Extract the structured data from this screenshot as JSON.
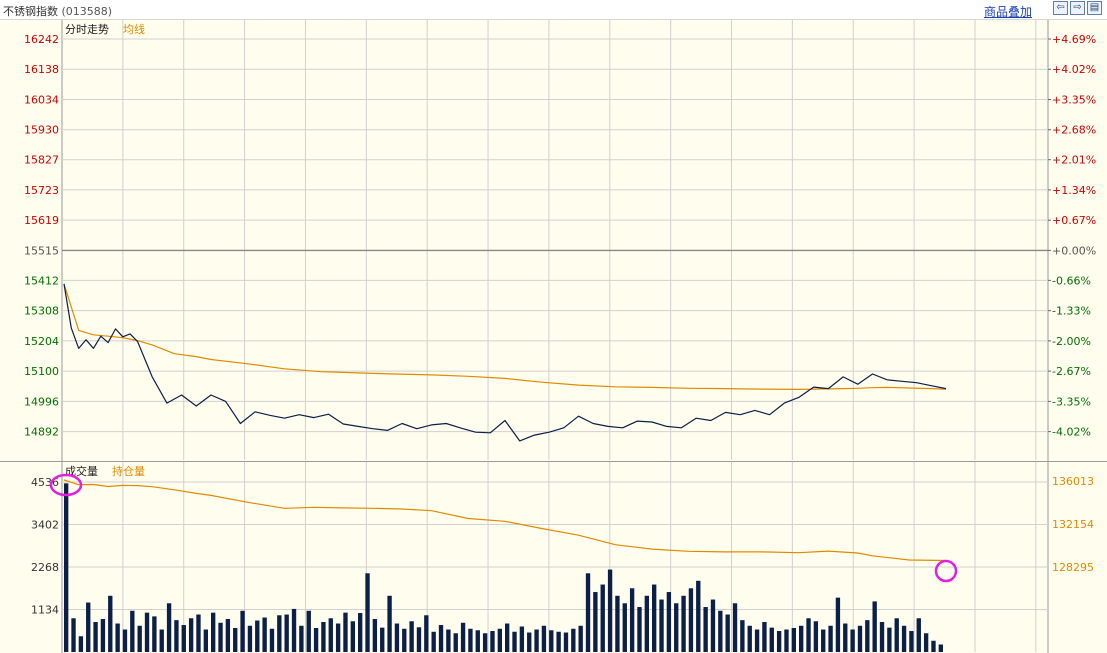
{
  "header": {
    "title": "不锈钢指数",
    "code": "(013588)",
    "overlay_link": "商品叠加",
    "buttons": [
      {
        "name": "prev-button",
        "glyph": "⇦"
      },
      {
        "name": "next-button",
        "glyph": "⇨"
      },
      {
        "name": "layout-button",
        "glyph": "▤"
      }
    ]
  },
  "colors": {
    "background": "#fffdee",
    "grid": "#d0d0d0",
    "price_line": "#0b1f47",
    "avg_line": "#e08a00",
    "up": "#d00000",
    "down": "#007000",
    "neutral": "#555555",
    "volume_bar": "#0b1f47",
    "open_interest_line": "#e08a00",
    "highlight": "#e020e0"
  },
  "chart_data": [
    {
      "type": "line",
      "legend": [
        "分时走势",
        "均线"
      ],
      "base_price": 15515,
      "y_left_ticks": [
        16242,
        16138,
        16034,
        15930,
        15827,
        15723,
        15619,
        15515,
        15412,
        15308,
        15204,
        15100,
        14996,
        14892
      ],
      "y_right_ticks": [
        "+4.69%",
        "+4.02%",
        "+3.35%",
        "+2.68%",
        "+2.01%",
        "+1.34%",
        "+0.67%",
        "+0.00%",
        "-0.66%",
        "-1.33%",
        "-2.00%",
        "-2.67%",
        "-3.35%",
        "-4.02%"
      ],
      "x_count": 120,
      "series": [
        {
          "name": "分时走势",
          "x": [
            0,
            1,
            2,
            3,
            4,
            5,
            6,
            7,
            8,
            9,
            10,
            12,
            14,
            16,
            18,
            20,
            22,
            24,
            26,
            28,
            30,
            32,
            34,
            36,
            38,
            40,
            42,
            44,
            46,
            48,
            50,
            52,
            54,
            56,
            58,
            60,
            62,
            64,
            66,
            68,
            70,
            72,
            74,
            76,
            78,
            80,
            82,
            84,
            86,
            88,
            90,
            92,
            94,
            96,
            98,
            100,
            102,
            104,
            106,
            108,
            110,
            112,
            114,
            116,
            118,
            120
          ],
          "values": [
            15400,
            15248,
            15178,
            15208,
            15178,
            15220,
            15198,
            15245,
            15218,
            15228,
            15202,
            15080,
            14990,
            15018,
            14980,
            15018,
            14996,
            14920,
            14960,
            14948,
            14938,
            14950,
            14940,
            14952,
            14918,
            14910,
            14902,
            14896,
            14920,
            14902,
            14915,
            14920,
            14904,
            14890,
            14888,
            14930,
            14860,
            14880,
            14890,
            14905,
            14945,
            14920,
            14910,
            14905,
            14928,
            14925,
            14910,
            14905,
            14938,
            14930,
            14958,
            14950,
            14965,
            14950,
            14990,
            15010,
            15045,
            15040,
            15080,
            15055,
            15090,
            15070,
            15065,
            15060,
            15050,
            15040
          ]
        },
        {
          "name": "均线",
          "x": [
            0,
            2,
            4,
            6,
            8,
            10,
            12,
            15,
            18,
            20,
            25,
            30,
            35,
            40,
            45,
            50,
            55,
            60,
            65,
            70,
            75,
            80,
            85,
            90,
            95,
            100,
            102,
            104,
            106,
            108,
            110,
            112,
            115,
            118,
            120
          ],
          "values": [
            15400,
            15240,
            15225,
            15220,
            15215,
            15205,
            15190,
            15160,
            15150,
            15140,
            15125,
            15108,
            15098,
            15094,
            15090,
            15087,
            15082,
            15075,
            15062,
            15052,
            15046,
            15044,
            15041,
            15040,
            15038,
            15037,
            15038,
            15039,
            15040,
            15041,
            15043,
            15044,
            15042,
            15040,
            15038
          ]
        }
      ]
    },
    {
      "type": "bar",
      "legend": [
        "成交量",
        "持仓量"
      ],
      "y_left_ticks": [
        4536,
        3402,
        2268,
        1134
      ],
      "y_right_ticks": [
        136013,
        132154,
        128295
      ],
      "x_count": 120,
      "volume": [
        4500,
        900,
        420,
        1320,
        800,
        880,
        1500,
        760,
        600,
        1100,
        700,
        1050,
        950,
        600,
        1300,
        850,
        720,
        900,
        1000,
        600,
        1050,
        780,
        880,
        640,
        1100,
        700,
        840,
        920,
        620,
        980,
        1000,
        1150,
        700,
        1100,
        640,
        800,
        900,
        760,
        1050,
        820,
        1040,
        2100,
        880,
        650,
        1500,
        760,
        620,
        820,
        660,
        980,
        540,
        720,
        600,
        500,
        780,
        620,
        580,
        500,
        560,
        620,
        760,
        540,
        680,
        520,
        600,
        700,
        580,
        540,
        520,
        620,
        700,
        2100,
        1600,
        1800,
        2200,
        1500,
        1300,
        1700,
        1200,
        1500,
        1800,
        1400,
        1600,
        1300,
        1500,
        1700,
        1900,
        1200,
        1400,
        1100,
        1000,
        1300,
        850,
        700,
        600,
        800,
        650,
        560,
        600,
        640,
        700,
        900,
        820,
        600,
        700,
        1450,
        760,
        600,
        700,
        850,
        1350,
        800,
        650,
        900,
        700,
        560,
        900,
        500,
        300,
        200
      ],
      "open_interest": {
        "x": [
          0,
          2,
          4,
          6,
          8,
          10,
          12,
          15,
          18,
          20,
          25,
          30,
          34,
          38,
          42,
          46,
          50,
          55,
          60,
          65,
          70,
          75,
          80,
          85,
          90,
          95,
          100,
          104,
          108,
          110,
          115,
          120
        ],
        "values": [
          136100,
          135680,
          135700,
          135520,
          135620,
          135600,
          135500,
          135220,
          134900,
          134720,
          134100,
          133560,
          133650,
          133600,
          133560,
          133500,
          133350,
          132650,
          132400,
          131750,
          131150,
          130300,
          129900,
          129700,
          129650,
          129650,
          129580,
          129720,
          129550,
          129300,
          128920,
          128880
        ]
      }
    }
  ]
}
